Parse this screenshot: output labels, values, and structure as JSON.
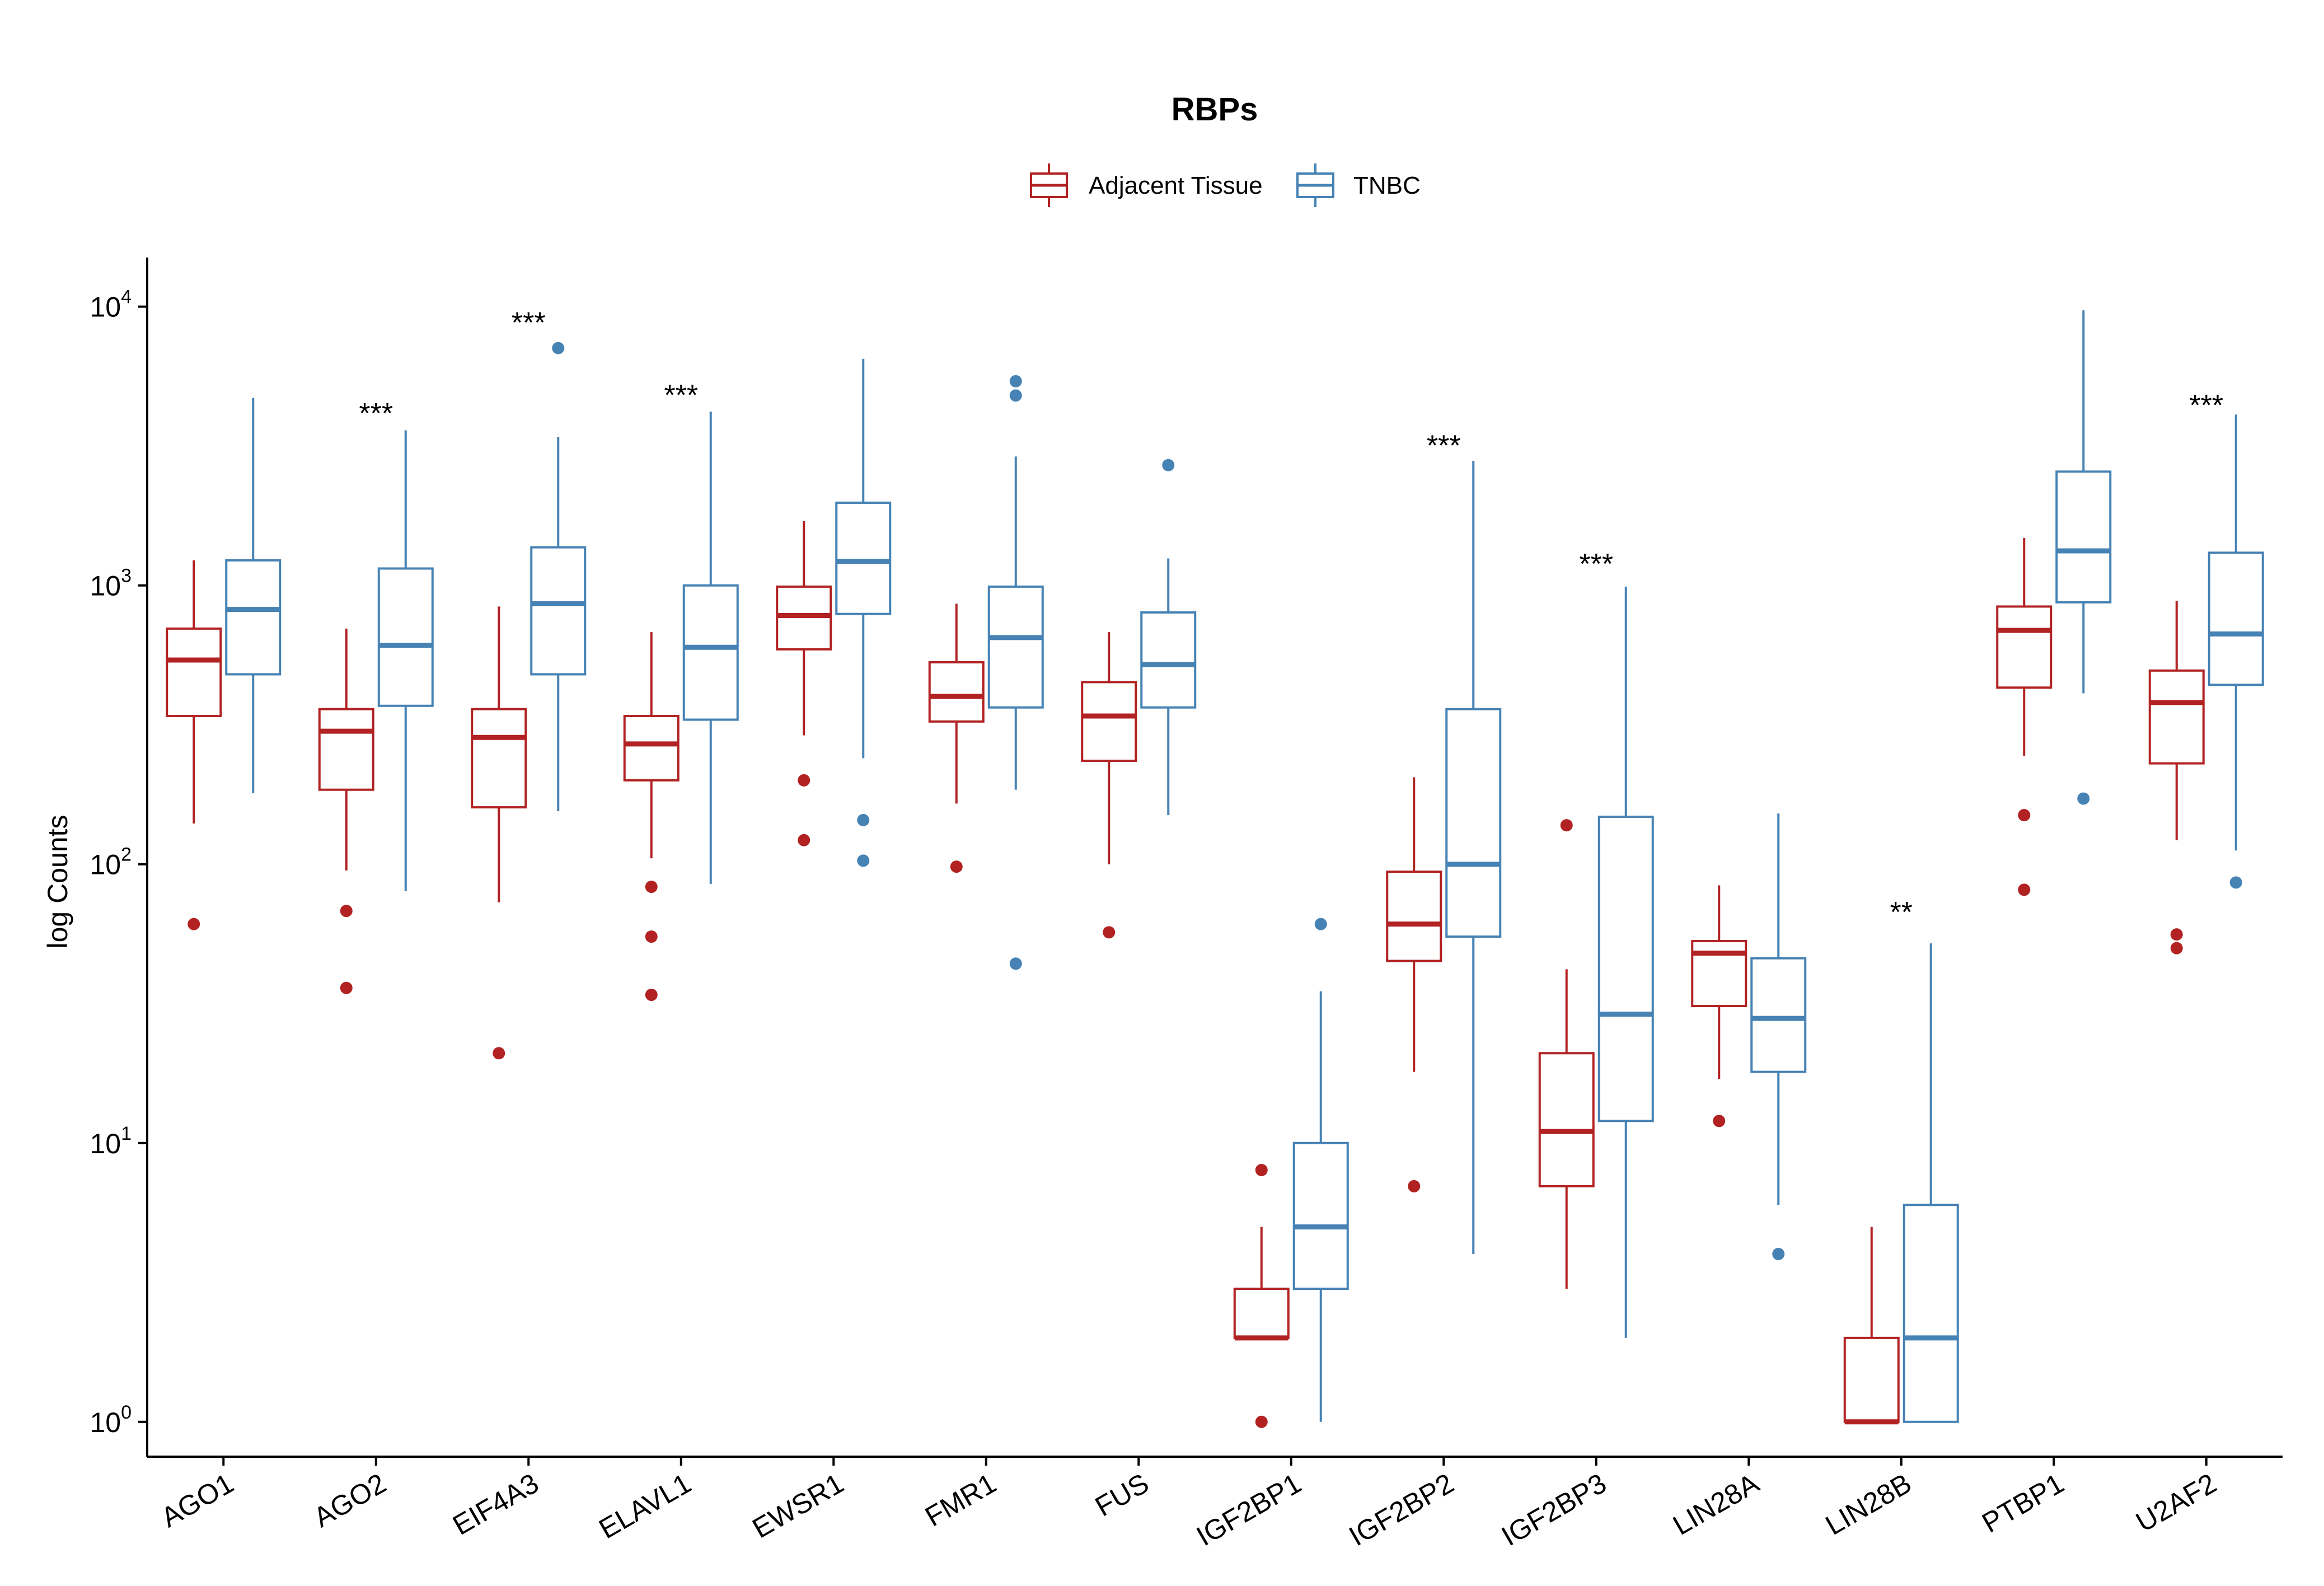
{
  "colors": {
    "adjacent": "#B22222",
    "tnbc": "#4682B4",
    "axis": "#000000"
  },
  "chart_data": {
    "type": "boxplot",
    "title": "RBPs",
    "ylabel": "log Counts",
    "xlabel": "",
    "yscale": "log10",
    "ylim": [
      0.75,
      15000
    ],
    "y_ticks": [
      {
        "base": "10",
        "exp": "0"
      },
      {
        "base": "10",
        "exp": "1"
      },
      {
        "base": "10",
        "exp": "2"
      },
      {
        "base": "10",
        "exp": "3"
      },
      {
        "base": "10",
        "exp": "4"
      }
    ],
    "legend": {
      "position": "top",
      "entries": [
        "Adjacent Tissue",
        "TNBC"
      ]
    },
    "categories": [
      "AGO1",
      "AGO2",
      "EIF4A3",
      "ELAVL1",
      "EWSR1",
      "FMR1",
      "FUS",
      "IGF2BP1",
      "IGF2BP2",
      "IGF2BP3",
      "LIN28A",
      "LIN28B",
      "PTBP1",
      "U2AF2"
    ],
    "series": [
      {
        "name": "Adjacent Tissue",
        "boxes": [
          {
            "whislo": 140,
            "q1": 340,
            "med": 540,
            "q3": 700,
            "whishi": 1230,
            "fliers": [
              61
            ]
          },
          {
            "whislo": 95,
            "q1": 185,
            "med": 300,
            "q3": 360,
            "whishi": 700,
            "fliers": [
              68,
              36
            ]
          },
          {
            "whislo": 73,
            "q1": 160,
            "med": 285,
            "q3": 360,
            "whishi": 840,
            "fliers": [
              21
            ]
          },
          {
            "whislo": 105,
            "q1": 200,
            "med": 270,
            "q3": 340,
            "whishi": 680,
            "fliers": [
              83,
              55,
              34
            ]
          },
          {
            "whislo": 290,
            "q1": 590,
            "med": 780,
            "q3": 990,
            "whishi": 1700,
            "fliers": [
              200,
              122
            ]
          },
          {
            "whislo": 165,
            "q1": 325,
            "med": 400,
            "q3": 530,
            "whishi": 860,
            "fliers": [
              98
            ]
          },
          {
            "whislo": 100,
            "q1": 235,
            "med": 340,
            "q3": 450,
            "whishi": 680,
            "fliers": [
              57
            ]
          },
          {
            "whislo": 2,
            "q1": 2,
            "med": 2,
            "q3": 3,
            "whishi": 5,
            "fliers": [
              8,
              1
            ]
          },
          {
            "whislo": 18,
            "q1": 45,
            "med": 61,
            "q3": 94,
            "whishi": 205,
            "fliers": [
              7
            ]
          },
          {
            "whislo": 3,
            "q1": 7,
            "med": 11,
            "q3": 21,
            "whishi": 42,
            "fliers": [
              138
            ]
          },
          {
            "whislo": 17,
            "q1": 31,
            "med": 48,
            "q3": 53,
            "whishi": 84,
            "fliers": [
              12
            ]
          },
          {
            "whislo": 1,
            "q1": 1,
            "med": 1,
            "q3": 2,
            "whishi": 5,
            "fliers": []
          },
          {
            "whislo": 245,
            "q1": 430,
            "med": 690,
            "q3": 840,
            "whishi": 1480,
            "fliers": [
              150,
              81
            ]
          },
          {
            "whislo": 122,
            "q1": 230,
            "med": 380,
            "q3": 495,
            "whishi": 880,
            "fliers": [
              56,
              50
            ]
          }
        ]
      },
      {
        "name": "TNBC",
        "boxes": [
          {
            "whislo": 180,
            "q1": 480,
            "med": 820,
            "q3": 1230,
            "whishi": 4700,
            "fliers": []
          },
          {
            "whislo": 80,
            "q1": 370,
            "med": 610,
            "q3": 1150,
            "whishi": 3600,
            "fliers": []
          },
          {
            "whislo": 155,
            "q1": 480,
            "med": 860,
            "q3": 1370,
            "whishi": 3400,
            "fliers": [
              7100
            ]
          },
          {
            "whislo": 85,
            "q1": 330,
            "med": 600,
            "q3": 1000,
            "whishi": 4200,
            "fliers": []
          },
          {
            "whislo": 240,
            "q1": 790,
            "med": 1220,
            "q3": 1980,
            "whishi": 6500,
            "fliers": [
              144,
              103
            ]
          },
          {
            "whislo": 185,
            "q1": 365,
            "med": 650,
            "q3": 990,
            "whishi": 2900,
            "fliers": [
              5400,
              4800,
              44
            ]
          },
          {
            "whislo": 150,
            "q1": 365,
            "med": 520,
            "q3": 800,
            "whishi": 1250,
            "fliers": [
              2700
            ]
          },
          {
            "whislo": 1,
            "q1": 3,
            "med": 5,
            "q3": 10,
            "whishi": 35,
            "fliers": [
              61
            ]
          },
          {
            "whislo": 4,
            "q1": 55,
            "med": 100,
            "q3": 360,
            "whishi": 2800,
            "fliers": []
          },
          {
            "whislo": 2,
            "q1": 12,
            "med": 29,
            "q3": 148,
            "whishi": 990,
            "fliers": []
          },
          {
            "whislo": 6,
            "q1": 18,
            "med": 28,
            "q3": 46,
            "whishi": 152,
            "fliers": [
              4
            ]
          },
          {
            "whislo": 1,
            "q1": 1,
            "med": 2,
            "q3": 6,
            "whishi": 52,
            "fliers": []
          },
          {
            "whislo": 410,
            "q1": 870,
            "med": 1330,
            "q3": 2560,
            "whishi": 9700,
            "fliers": [
              172
            ]
          },
          {
            "whislo": 112,
            "q1": 440,
            "med": 670,
            "q3": 1310,
            "whishi": 4100,
            "fliers": [
              86
            ]
          }
        ]
      }
    ],
    "annotations": [
      {
        "category": "AGO2",
        "text": "***",
        "y": 4300
      },
      {
        "category": "EIF4A3",
        "text": "***",
        "y": 9100
      },
      {
        "category": "ELAVL1",
        "text": "***",
        "y": 5000
      },
      {
        "category": "IGF2BP2",
        "text": "***",
        "y": 3300
      },
      {
        "category": "IGF2BP3",
        "text": "***",
        "y": 1240
      },
      {
        "category": "LIN28B",
        "text": "**",
        "y": 70
      },
      {
        "category": "U2AF2",
        "text": "***",
        "y": 4600
      }
    ]
  }
}
